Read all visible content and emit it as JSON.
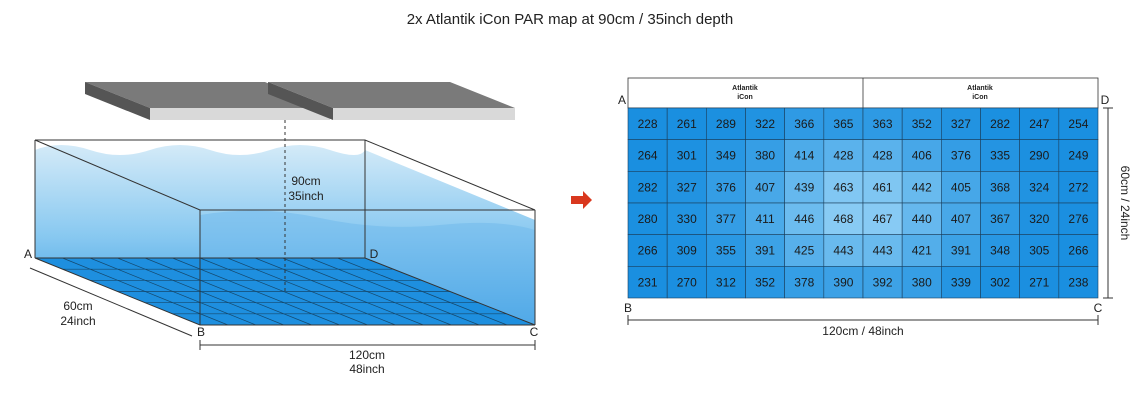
{
  "title": "2x Atlantik iCon PAR map at 90cm / 35inch depth",
  "illustration": {
    "depth": [
      "90cm",
      "35inch"
    ],
    "width": [
      "60cm",
      "24inch"
    ],
    "length": [
      "120cm",
      "48inch"
    ],
    "corners": {
      "a": "A",
      "b": "B",
      "c": "C",
      "d": "D"
    }
  },
  "par_map": {
    "lights": [
      [
        "Atlantik",
        "iCon"
      ],
      [
        "Atlantik",
        "iCon"
      ]
    ],
    "corners": {
      "a": "A",
      "b": "B",
      "c": "C",
      "d": "D"
    },
    "length_label": "120cm / 48inch",
    "width_label": "60cm / 24inch",
    "rows": [
      [
        228,
        261,
        289,
        322,
        366,
        365,
        363,
        352,
        327,
        282,
        247,
        254
      ],
      [
        264,
        301,
        349,
        380,
        414,
        428,
        428,
        406,
        376,
        335,
        290,
        249
      ],
      [
        282,
        327,
        376,
        407,
        439,
        463,
        461,
        442,
        405,
        368,
        324,
        272
      ],
      [
        280,
        330,
        377,
        411,
        446,
        468,
        467,
        440,
        407,
        367,
        320,
        276
      ],
      [
        266,
        309,
        355,
        391,
        425,
        443,
        443,
        421,
        391,
        348,
        305,
        266
      ],
      [
        231,
        270,
        312,
        352,
        378,
        390,
        392,
        380,
        339,
        302,
        271,
        238
      ]
    ]
  }
}
